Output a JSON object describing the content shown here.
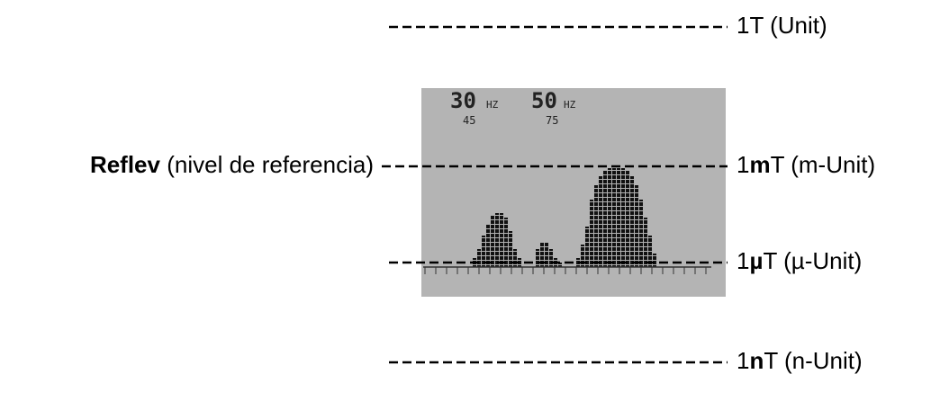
{
  "reference": {
    "name": "Reflev",
    "description": "(nivel de referencia)"
  },
  "levels": [
    {
      "label": "1T (Unit)"
    },
    {
      "number": "1",
      "prefix": "m",
      "unit": "T (m-Unit)"
    },
    {
      "number": "1",
      "prefix": "µ",
      "unit": "T (µ-Unit)"
    },
    {
      "number": "1",
      "prefix": "n",
      "unit": "T (n-Unit)"
    }
  ],
  "display": {
    "markers": [
      {
        "frequency": "30",
        "unit": "HZ",
        "value": "45"
      },
      {
        "frequency": "50",
        "unit": "HZ",
        "value": "75"
      }
    ]
  }
}
